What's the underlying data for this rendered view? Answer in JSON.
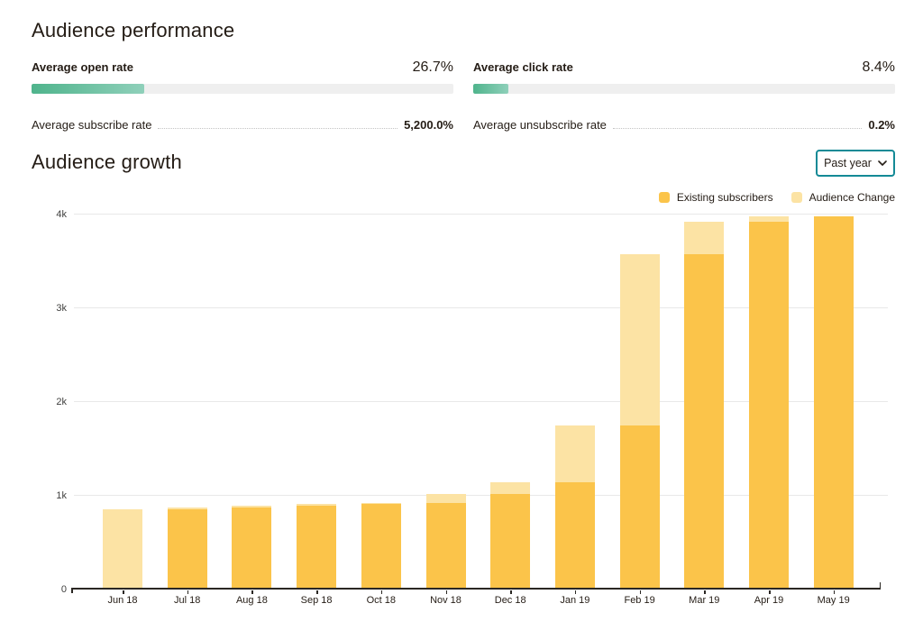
{
  "performance": {
    "title": "Audience performance",
    "metrics": [
      {
        "label": "Average open rate",
        "value": "26.7%",
        "percent": 26.7
      },
      {
        "label": "Average click rate",
        "value": "8.4%",
        "percent": 8.4
      },
      {
        "label": "Average subscribe rate",
        "value": "5,200.0%"
      },
      {
        "label": "Average unsubscribe rate",
        "value": "0.2%"
      }
    ],
    "progress_colors": {
      "fill_start": "#4fb48c",
      "fill_end": "#8fd0ba",
      "track": "#efefef"
    }
  },
  "growth": {
    "title": "Audience growth",
    "range_selector": {
      "value": "Past year"
    },
    "legend": [
      {
        "label": "Existing subscribers",
        "color": "#fbc44a"
      },
      {
        "label": "Audience Change",
        "color": "#fce3a4"
      }
    ]
  },
  "chart_data": {
    "type": "bar",
    "stacked": true,
    "title": "Audience growth",
    "categories": [
      "Jun 18",
      "Jul 18",
      "Aug 18",
      "Sep 18",
      "Oct 18",
      "Nov 18",
      "Dec 18",
      "Jan 19",
      "Feb 19",
      "Mar 19",
      "Apr 19",
      "May 19"
    ],
    "series": [
      {
        "name": "Existing subscribers",
        "color": "#fbc44a",
        "values": [
          0,
          850,
          870,
          880,
          905,
          915,
          1005,
          1130,
          1740,
          3570,
          3910,
          3975
        ]
      },
      {
        "name": "Audience Change",
        "color": "#fce3a4",
        "values": [
          850,
          20,
          10,
          25,
          10,
          90,
          125,
          610,
          1830,
          340,
          65,
          0
        ]
      }
    ],
    "ylim": [
      0,
      4000
    ],
    "yticks": [
      {
        "value": 0,
        "label": "0"
      },
      {
        "value": 1000,
        "label": "1k"
      },
      {
        "value": 2000,
        "label": "2k"
      },
      {
        "value": 3000,
        "label": "3k"
      },
      {
        "value": 4000,
        "label": "4k"
      }
    ],
    "grid": true,
    "legend_position": "top-right"
  }
}
